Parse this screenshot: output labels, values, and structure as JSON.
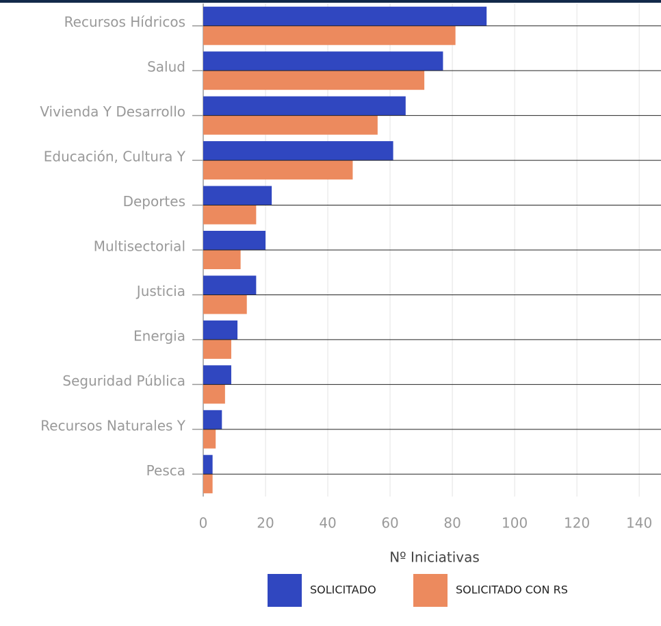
{
  "chart_data": {
    "type": "bar",
    "orientation": "horizontal",
    "x_label": "Nº Iniciativas",
    "categories": [
      "Recursos Hídricos",
      "Salud",
      "Vivienda Y Desarrollo",
      "Educación, Cultura Y",
      "Deportes",
      "Multisectorial",
      "Justicia",
      "Energia",
      "Seguridad Pública",
      "Recursos Naturales Y",
      "Pesca"
    ],
    "series": [
      {
        "name": "SOLICITADO",
        "color": "#3047c0",
        "values": [
          91,
          77,
          65,
          61,
          22,
          20,
          17,
          11,
          9,
          6,
          3
        ]
      },
      {
        "name": "SOLICITADO CON RS",
        "color": "#ec8a5e",
        "values": [
          81,
          71,
          56,
          48,
          17,
          12,
          14,
          9,
          7,
          4,
          3
        ]
      }
    ],
    "xlim": [
      0,
      147
    ],
    "xticks": [
      0,
      20,
      40,
      60,
      80,
      100,
      120,
      140
    ],
    "grid": true,
    "legend": "bottom"
  }
}
